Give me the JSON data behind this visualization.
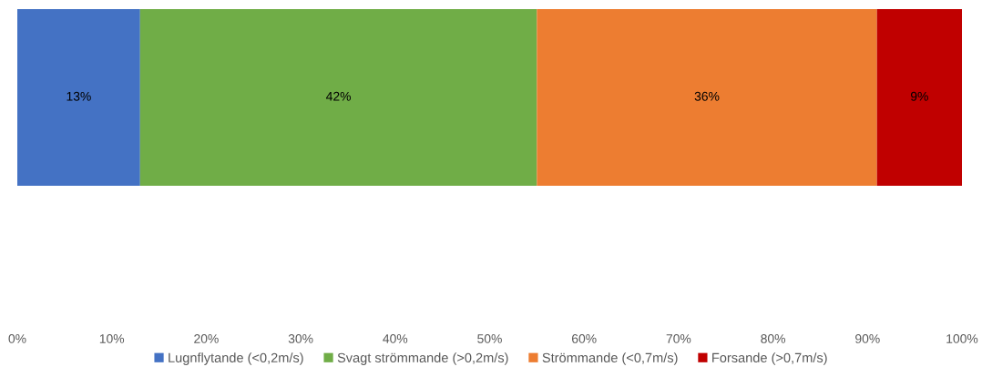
{
  "chart_data": {
    "type": "bar",
    "orientation": "horizontal",
    "stacked": true,
    "categories": [
      null
    ],
    "series": [
      {
        "name": "Lugnflytande (<0,2m/s)",
        "color": "#4472c4",
        "values": [
          13
        ],
        "value_labels": [
          "13%"
        ]
      },
      {
        "name": "Svagt strömmande (>0,2m/s)",
        "color": "#70ad47",
        "values": [
          42
        ],
        "value_labels": [
          "42%"
        ]
      },
      {
        "name": "Strömmande (<0,7m/s)",
        "color": "#ed7d31",
        "values": [
          36
        ],
        "value_labels": [
          "36%"
        ]
      },
      {
        "name": "Forsande (>0,7m/s)",
        "color": "#c00000",
        "values": [
          9
        ],
        "value_labels": [
          "9%"
        ]
      }
    ],
    "xlim": [
      0,
      100
    ],
    "xticks": [
      {
        "value": 0,
        "label": "0%"
      },
      {
        "value": 10,
        "label": "10%"
      },
      {
        "value": 20,
        "label": "20%"
      },
      {
        "value": 30,
        "label": "30%"
      },
      {
        "value": 40,
        "label": "40%"
      },
      {
        "value": 50,
        "label": "50%"
      },
      {
        "value": 60,
        "label": "60%"
      },
      {
        "value": 70,
        "label": "70%"
      },
      {
        "value": 80,
        "label": "80%"
      },
      {
        "value": 90,
        "label": "90%"
      },
      {
        "value": 100,
        "label": "100%"
      }
    ],
    "grid": false,
    "legend": "bottom"
  }
}
